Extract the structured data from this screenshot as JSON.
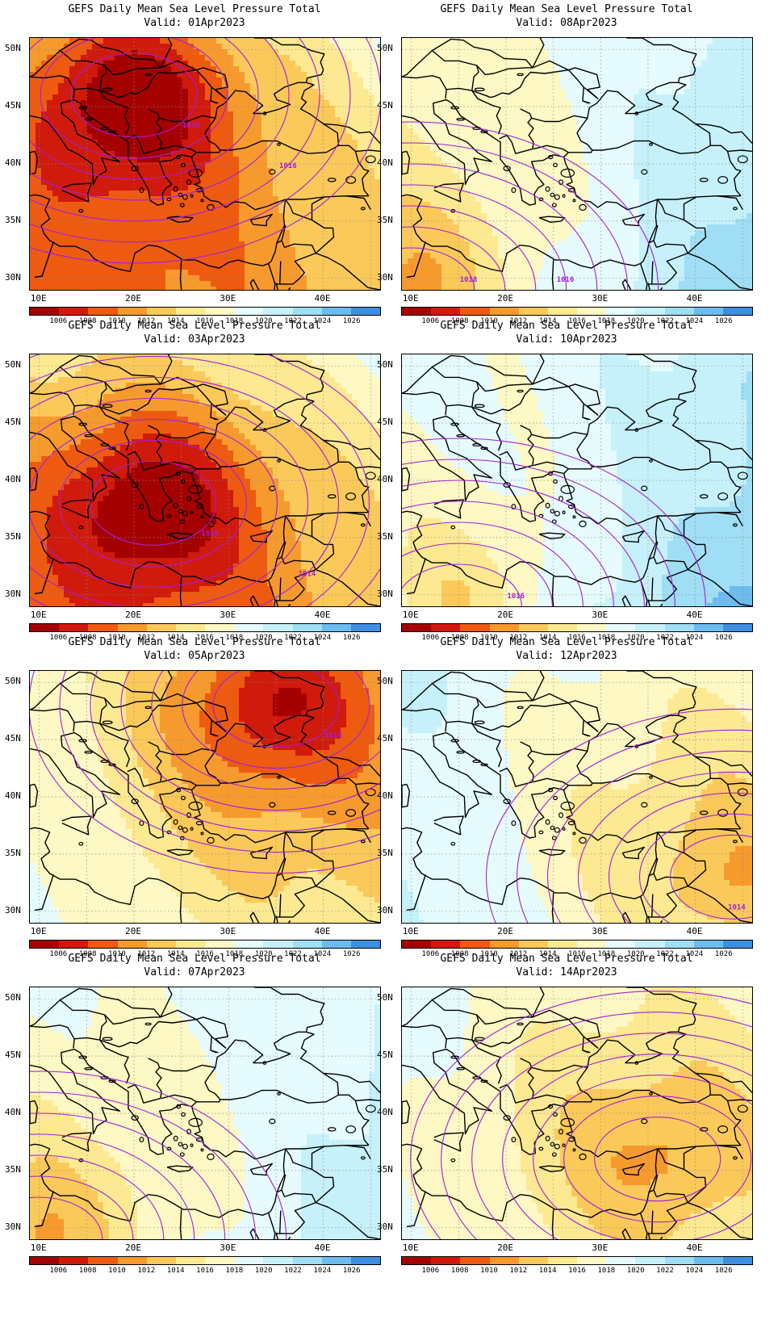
{
  "figure": {
    "panels": [
      {
        "title": "GEFS Daily Mean Sea Level Pressure Total",
        "valid": "Valid: 01Apr2023",
        "contour_labels": [
          "1016",
          "1016"
        ],
        "pressure_field": {
          "low_center": [
            20,
            46
          ],
          "low_value": 1002,
          "gradient_lat": 0.55,
          "gradient_lon": 0.12,
          "base": 1014
        }
      },
      {
        "title": "GEFS Daily Mean Sea Level Pressure Total",
        "valid": "Valid: 08Apr2023",
        "contour_labels": [
          "1018",
          "1016"
        ],
        "pressure_field": {
          "low_center": [
            10,
            29
          ],
          "low_value": 1010,
          "gradient_lat": -0.35,
          "gradient_lon": 0.05,
          "base": 1017
        }
      },
      {
        "title": "GEFS Daily Mean Sea Level Pressure Total",
        "valid": "Valid: 03Apr2023",
        "contour_labels": [
          "1018",
          "1014"
        ],
        "pressure_field": {
          "low_center": [
            22,
            38
          ],
          "low_value": 1004,
          "gradient_lat": 0.4,
          "gradient_lon": 0.1,
          "base": 1014
        }
      },
      {
        "title": "GEFS Daily Mean Sea Level Pressure Total",
        "valid": "Valid: 10Apr2023",
        "contour_labels": [
          "1016"
        ],
        "pressure_field": {
          "low_center": [
            15,
            29
          ],
          "low_value": 1012,
          "gradient_lat": -0.45,
          "gradient_lon": 0.05,
          "base": 1018
        }
      },
      {
        "title": "GEFS Daily Mean Sea Level Pressure Total",
        "valid": "Valid: 05Apr2023",
        "contour_labels": [
          "1016"
        ],
        "pressure_field": {
          "low_center": [
            35,
            48
          ],
          "low_value": 1006,
          "gradient_lat": 0.05,
          "gradient_lon": -0.15,
          "base": 1015
        }
      },
      {
        "title": "GEFS Daily Mean Sea Level Pressure Total",
        "valid": "Valid: 12Apr2023",
        "contour_labels": [
          "1014"
        ],
        "pressure_field": {
          "low_center": [
            44,
            33
          ],
          "low_value": 1011,
          "gradient_lat": -0.15,
          "gradient_lon": 0.02,
          "base": 1014
        }
      },
      {
        "title": "GEFS Daily Mean Sea Level Pressure Total",
        "valid": "Valid: 07Apr2023",
        "contour_labels": [],
        "pressure_field": {
          "low_center": [
            10,
            29
          ],
          "low_value": 1010,
          "gradient_lat": -0.25,
          "gradient_lon": -0.05,
          "base": 1016
        }
      },
      {
        "title": "GEFS Daily Mean Sea Level Pressure Total",
        "valid": "Valid: 14Apr2023",
        "contour_labels": [],
        "pressure_field": {
          "low_center": [
            36,
            36
          ],
          "low_value": 1011,
          "gradient_lat": -0.05,
          "gradient_lon": 0.0,
          "base": 1014
        }
      }
    ],
    "y_ticks": [
      "50N",
      "45N",
      "40N",
      "35N",
      "30N"
    ],
    "x_ticks": [
      "10E",
      "20E",
      "30E",
      "40E"
    ],
    "colorbar": {
      "labels": [
        "1006",
        "1008",
        "1010",
        "1012",
        "1014",
        "1016",
        "1018",
        "1020",
        "1022",
        "1024",
        "1026"
      ],
      "colors": [
        "#a50000",
        "#d01a0c",
        "#ee5a10",
        "#f79a2e",
        "#fbc95a",
        "#fde992",
        "#fdf8c4",
        "#e6fbfe",
        "#c6f1fb",
        "#9fdef4",
        "#6cbdee",
        "#3f8fe0",
        "#1f5fcc"
      ]
    },
    "contour_color": "#a41fd8",
    "border_color": "#000000"
  }
}
